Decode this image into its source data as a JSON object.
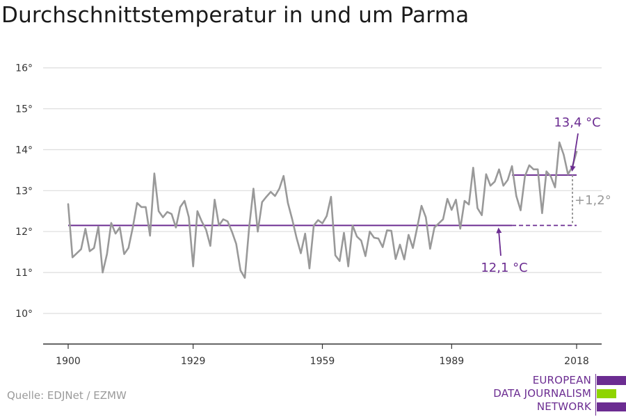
{
  "title": "Durchschnittstemperatur in und um Parma",
  "source": "Quelle: EDJNet / EZMW",
  "logo": {
    "lines": [
      "EUROPEAN",
      "DATA JOURNALISM",
      "NETWORK"
    ],
    "colors": [
      "#6b2c91",
      "#8fd400",
      "#6b2c91"
    ]
  },
  "chart_data": {
    "type": "line",
    "title": "Durchschnittstemperatur in und um Parma",
    "xlabel": "",
    "ylabel": "",
    "xlim": [
      1900,
      2018
    ],
    "ylim": [
      9.3,
      16.4
    ],
    "x_ticks": [
      1900,
      1929,
      1959,
      1989,
      2018
    ],
    "x_tick_labels": [
      "1900",
      "1929",
      "1959",
      "1989",
      "2018"
    ],
    "y_ticks": [
      10,
      11,
      12,
      13,
      14,
      15,
      16
    ],
    "y_tick_labels": [
      "10°",
      "11°",
      "12°",
      "13°",
      "14°",
      "15°",
      "16°"
    ],
    "grid": true,
    "series": [
      {
        "color": "#999999",
        "x": [
          1900,
          1901,
          1902,
          1903,
          1904,
          1905,
          1906,
          1907,
          1908,
          1909,
          1910,
          1911,
          1912,
          1913,
          1914,
          1915,
          1916,
          1917,
          1918,
          1919,
          1920,
          1921,
          1922,
          1923,
          1924,
          1925,
          1926,
          1927,
          1928,
          1929,
          1930,
          1931,
          1932,
          1933,
          1934,
          1935,
          1936,
          1937,
          1938,
          1939,
          1940,
          1941,
          1942,
          1943,
          1944,
          1945,
          1946,
          1947,
          1948,
          1949,
          1950,
          1951,
          1952,
          1953,
          1954,
          1955,
          1956,
          1957,
          1958,
          1959,
          1960,
          1961,
          1962,
          1963,
          1964,
          1965,
          1966,
          1967,
          1968,
          1969,
          1970,
          1971,
          1972,
          1973,
          1974,
          1975,
          1976,
          1977,
          1978,
          1979,
          1980,
          1981,
          1982,
          1983,
          1984,
          1985,
          1986,
          1987,
          1988,
          1989,
          1990,
          1991,
          1992,
          1993,
          1994,
          1995,
          1996,
          1997,
          1998,
          1999,
          2000,
          2001,
          2002,
          2003,
          2004,
          2005,
          2006,
          2007,
          2008,
          2009,
          2010,
          2011,
          2012,
          2013,
          2014,
          2015,
          2016,
          2017,
          2018
        ],
        "values": [
          12.67,
          11.37,
          11.47,
          11.57,
          12.07,
          11.52,
          11.6,
          12.12,
          11.0,
          11.45,
          12.21,
          11.95,
          12.1,
          11.45,
          11.6,
          12.1,
          12.7,
          12.6,
          12.6,
          11.9,
          13.42,
          12.5,
          12.35,
          12.48,
          12.43,
          12.1,
          12.6,
          12.75,
          12.35,
          11.15,
          12.5,
          12.25,
          12.05,
          11.65,
          12.78,
          12.15,
          12.3,
          12.25,
          12.0,
          11.7,
          11.05,
          10.87,
          12.1,
          13.05,
          12.0,
          12.72,
          12.85,
          12.97,
          12.87,
          13.05,
          13.36,
          12.7,
          12.3,
          11.85,
          11.47,
          11.95,
          11.1,
          12.15,
          12.28,
          12.2,
          12.38,
          12.85,
          11.42,
          11.28,
          11.97,
          11.15,
          12.15,
          11.88,
          11.78,
          11.4,
          12.0,
          11.85,
          11.83,
          11.62,
          12.03,
          12.02,
          11.33,
          11.68,
          11.32,
          11.92,
          11.6,
          12.1,
          12.63,
          12.35,
          11.58,
          12.1,
          12.2,
          12.3,
          12.8,
          12.53,
          12.78,
          12.07,
          12.75,
          12.66,
          13.56,
          12.57,
          12.4,
          13.4,
          13.12,
          13.22,
          13.52,
          13.12,
          13.26,
          13.6,
          12.87,
          12.52,
          13.35,
          13.62,
          13.52,
          13.52,
          12.45,
          13.47,
          13.35,
          13.08,
          14.18,
          13.88,
          13.4,
          13.58,
          13.95
        ]
      }
    ],
    "reference_lines": [
      {
        "label": "12,1 °C",
        "value": 12.15,
        "x_start": 1900,
        "x_end": 2018,
        "dashed_from": 2003,
        "color": "#6b2c91"
      },
      {
        "label": "13,4 °C",
        "value": 13.38,
        "x_start": 2003,
        "x_end": 2018,
        "color": "#6b2c91"
      }
    ],
    "difference": {
      "label": "+1,2°",
      "color": "#999999"
    }
  }
}
